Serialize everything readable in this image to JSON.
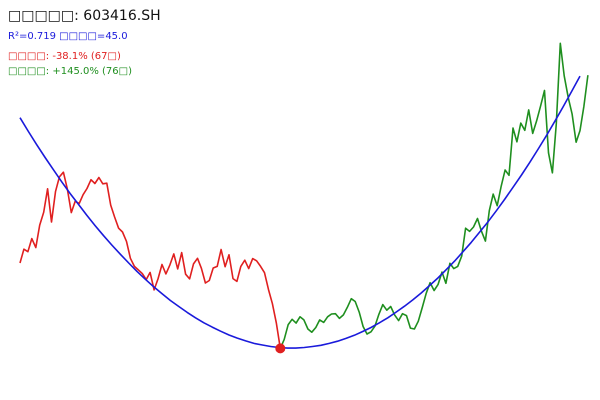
{
  "header": {
    "title": "□□□□□: 603416.SH",
    "fit_info": "R²=0.719 □□□□=45.0",
    "decline_info": "□□□□: -38.1% (67□)",
    "rise_info": "□□□□: +145.0% (76□)"
  },
  "colors": {
    "decline": "#e02020",
    "rise": "#1f8f1f",
    "fit": "#1a1adb",
    "marker": "#e02020"
  },
  "chart_data": {
    "type": "line",
    "title": "□□□□□: 603416.SH",
    "xlabel": "",
    "ylabel": "",
    "grid": false,
    "xlim": [
      0,
      142
    ],
    "ylim": [
      0,
      100
    ],
    "bottom_index": 66,
    "series": [
      {
        "values": [
          29.4,
          33.8,
          33.0,
          37.2,
          34.3,
          41.5,
          45.6,
          53.1,
          42.5,
          52.2,
          56.9,
          58.4,
          53.1,
          45.5,
          49.1,
          48.4,
          51.2,
          53.2,
          56.0,
          54.8,
          56.7,
          54.7,
          54.9,
          47.9,
          44.1,
          40.5,
          39.3,
          36.3,
          30.9,
          28.3,
          27.2,
          26.0,
          24.1,
          26.4,
          20.8,
          24.3,
          28.9,
          25.9,
          28.8,
          32.3,
          27.5,
          32.7,
          25.8,
          24.3,
          29.1,
          30.9,
          27.7,
          23.0,
          23.8,
          27.8,
          28.3,
          33.7,
          28.2,
          32.0,
          24.4,
          23.5,
          28.3,
          30.3,
          27.6,
          30.8,
          30.1,
          28.3,
          26.3,
          20.9,
          16.4,
          10.3,
          2.1
        ]
      },
      {
        "values": [
          2.1,
          5.0,
          9.7,
          11.4,
          10.2,
          12.2,
          11.2,
          8.3,
          7.3,
          8.8,
          11.2,
          10.4,
          12.2,
          13.1,
          13.2,
          11.7,
          12.8,
          15.2,
          18.0,
          17.1,
          13.7,
          9.1,
          6.7,
          7.4,
          9.2,
          13.0,
          16.1,
          14.3,
          15.5,
          12.8,
          11.0,
          13.2,
          12.6,
          8.6,
          8.3,
          10.8,
          15.2,
          19.7,
          23.1,
          20.6,
          22.5,
          26.5,
          22.9,
          29.3,
          27.6,
          28.3,
          31.6,
          40.5,
          39.5,
          40.9,
          43.6,
          39.6,
          36.4,
          46.1,
          51.4,
          47.7,
          53.8,
          59.1,
          57.4,
          72.5,
          68.1,
          74.1,
          71.8,
          78.3,
          70.8,
          74.8,
          79.6,
          84.5,
          64.6,
          58.2,
          73.9,
          99.6,
          89.2,
          82.3,
          77.0,
          68.0,
          71.7,
          79.5,
          89.4
        ]
      },
      {
        "values": [
          75.8,
          71.4,
          67.2,
          63.1,
          59.2,
          55.3,
          51.6,
          48.1,
          44.6,
          41.3,
          38.1,
          35.1,
          32.2,
          29.4,
          26.7,
          24.2,
          21.8,
          19.6,
          17.4,
          15.5,
          13.6,
          11.9,
          10.3,
          8.9,
          7.6,
          6.4,
          5.4,
          4.5,
          3.7,
          3.2,
          2.7,
          2.4,
          2.2,
          2.2,
          2.4,
          2.7,
          3.1,
          3.7,
          4.4,
          5.3,
          6.3,
          7.5,
          8.8,
          10.3,
          11.9,
          13.7,
          15.6,
          17.6,
          19.8,
          22.2,
          24.6,
          27.3,
          30.0,
          33.0,
          36.0,
          39.3,
          42.6,
          46.1,
          49.8,
          53.6,
          57.5,
          61.6,
          65.8,
          70.2,
          74.7,
          79.4,
          84.2,
          89.1
        ]
      }
    ]
  }
}
